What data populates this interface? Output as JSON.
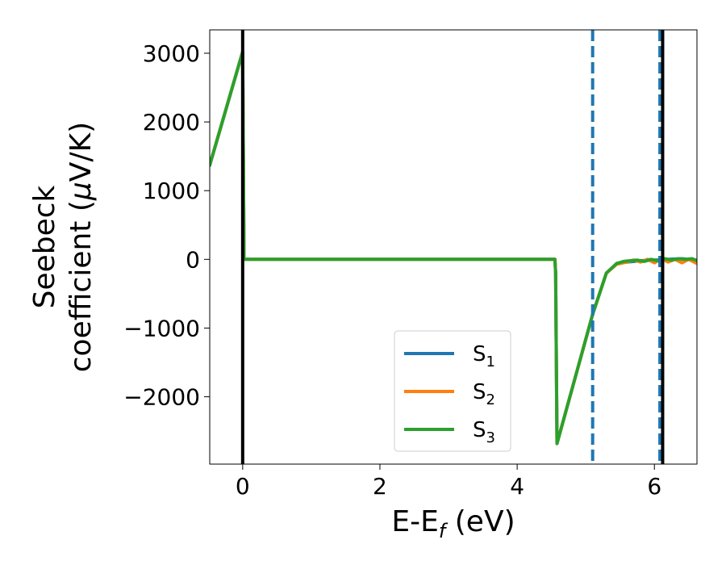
{
  "chart_data": {
    "type": "line",
    "xlabel": "E-E",
    "xlabel_sub": "f",
    "xlabel_unit": " (eV)",
    "ylabel_line1": "Seebeck",
    "ylabel_line2_pre": "coefficient  (",
    "ylabel_mu": "μ",
    "ylabel_line2_post": "V/K)",
    "xlim": [
      -0.48,
      6.62
    ],
    "ylim": [
      -2980,
      3340
    ],
    "xticks": [
      0,
      2,
      4,
      6
    ],
    "xtick_labels": [
      "0",
      "2",
      "4",
      "6"
    ],
    "yticks": [
      3000,
      2000,
      1000,
      0,
      -1000,
      -2000
    ],
    "ytick_labels": [
      "3000",
      "2000",
      "1000",
      "0",
      "−1000",
      "−2000"
    ],
    "legend_position": "lower-center",
    "grid": false,
    "vlines": [
      {
        "x": 0.0,
        "style": "solid",
        "color": "#000000"
      },
      {
        "x": 5.1,
        "style": "dashed",
        "color": "#1f77b4"
      },
      {
        "x": 6.08,
        "style": "dashed",
        "color": "#1f77b4"
      },
      {
        "x": 6.12,
        "style": "solid",
        "color": "#000000"
      }
    ],
    "series": [
      {
        "name_base": "S",
        "name_sub": "1",
        "color": "#1f77b4",
        "x": [
          -0.48,
          0.0,
          0.02,
          4.55,
          4.56,
          4.58,
          5.1,
          5.3,
          5.45,
          5.6,
          5.8,
          6.0,
          6.2,
          6.4,
          6.62
        ],
        "y": [
          1370,
          3020,
          0,
          0,
          -200,
          -2680,
          -800,
          -200,
          -60,
          -40,
          -20,
          -10,
          0,
          10,
          -10
        ]
      },
      {
        "name_base": "S",
        "name_sub": "2",
        "color": "#ff7f0e",
        "x": [
          -0.48,
          0.0,
          0.02,
          4.55,
          4.56,
          4.58,
          5.1,
          5.3,
          5.45,
          5.6,
          5.7,
          5.8,
          5.9,
          6.0,
          6.1,
          6.2,
          6.3,
          6.4,
          6.5,
          6.62
        ],
        "y": [
          1370,
          3020,
          0,
          0,
          -200,
          -2680,
          -800,
          -200,
          -70,
          -40,
          -10,
          -40,
          0,
          -50,
          10,
          -40,
          0,
          -50,
          0,
          -60
        ]
      },
      {
        "name_base": "S",
        "name_sub": "3",
        "color": "#2ca02c",
        "x": [
          -0.48,
          0.0,
          0.02,
          4.55,
          4.56,
          4.58,
          5.1,
          5.3,
          5.45,
          5.55,
          5.65,
          5.75,
          5.85,
          5.95,
          6.05,
          6.15,
          6.25,
          6.35,
          6.45,
          6.55,
          6.62
        ],
        "y": [
          1370,
          3020,
          0,
          0,
          -200,
          -2680,
          -800,
          -200,
          -60,
          -30,
          -20,
          -10,
          -30,
          0,
          -20,
          10,
          -10,
          10,
          0,
          10,
          -20
        ]
      }
    ]
  }
}
